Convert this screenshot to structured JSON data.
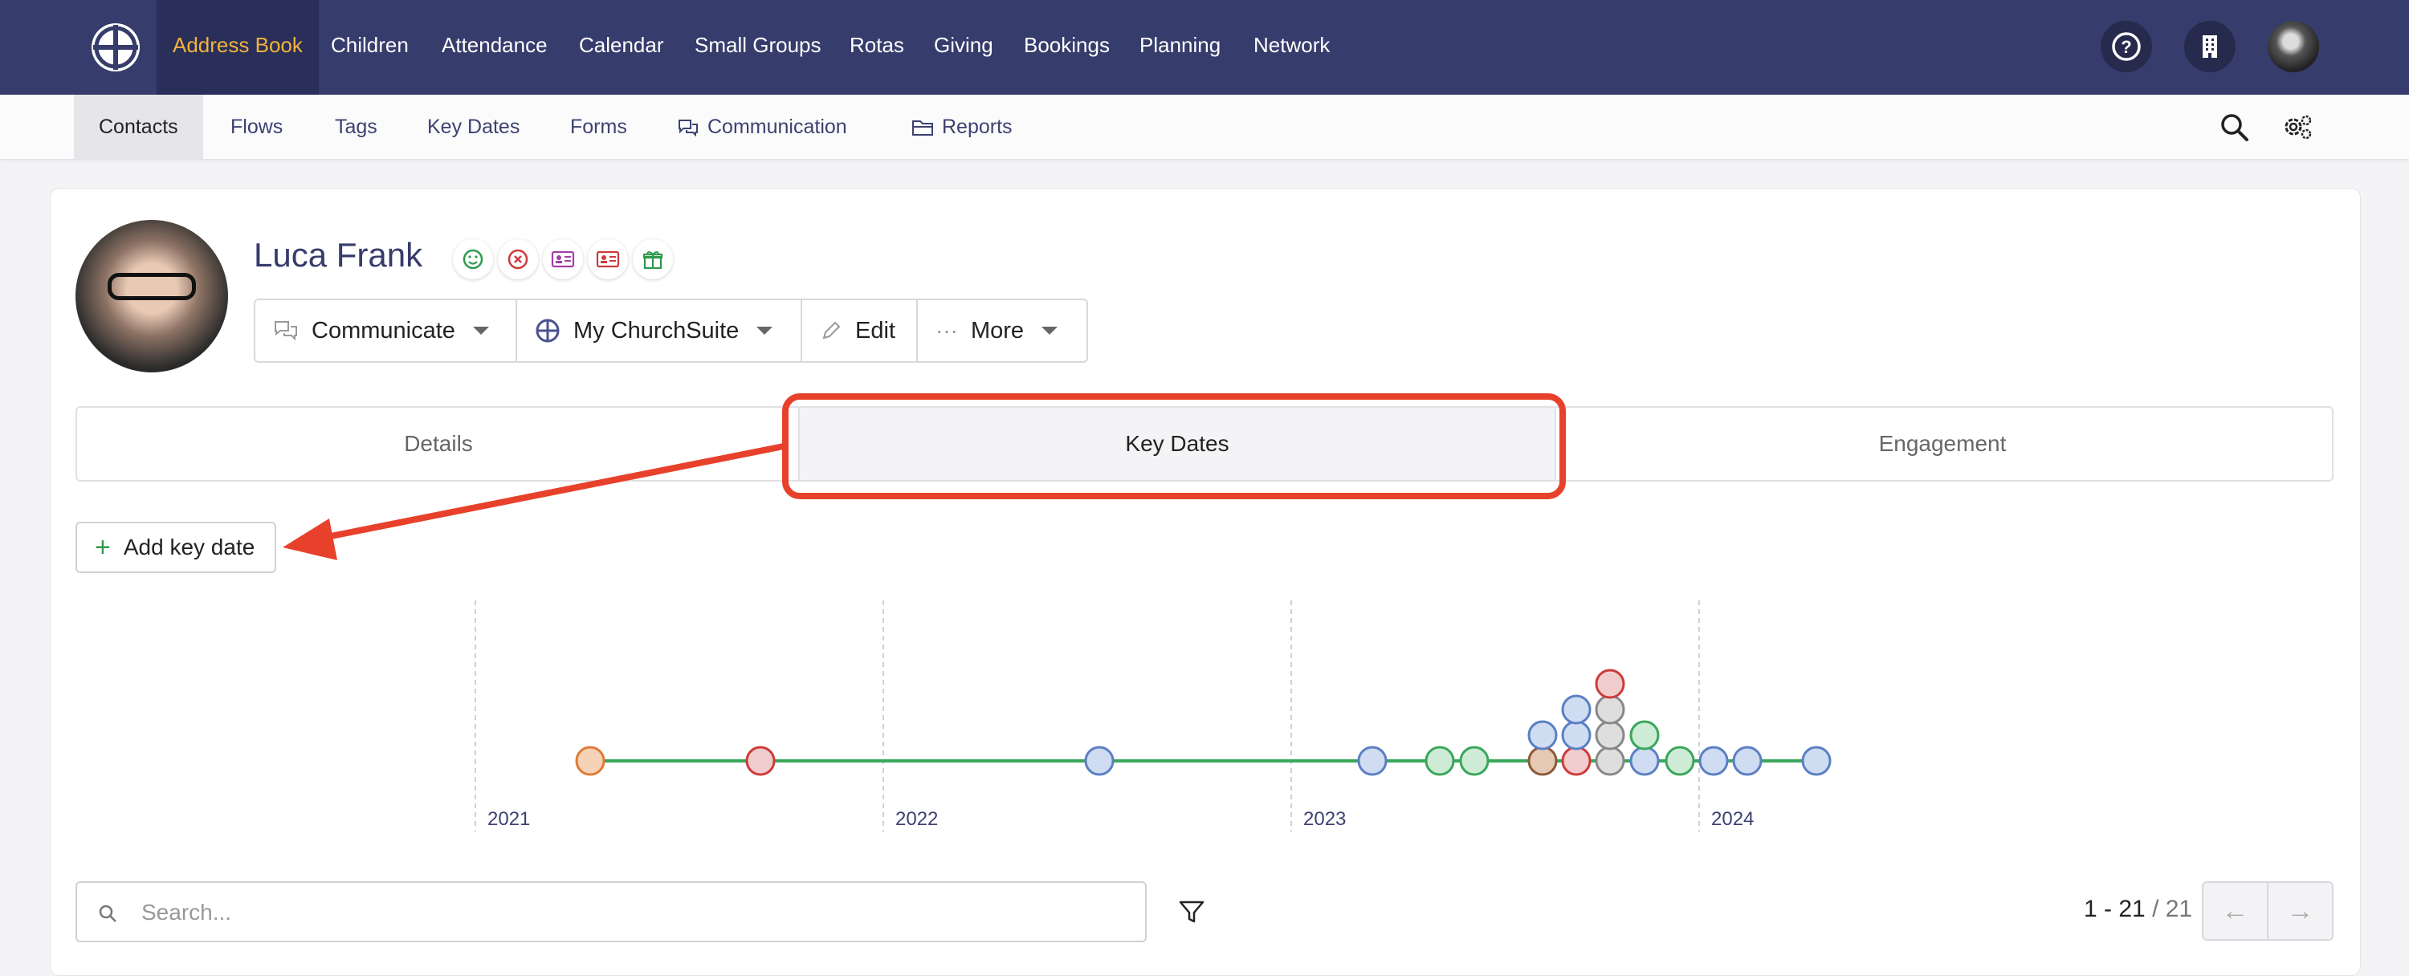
{
  "topnav": {
    "items": [
      {
        "label": "Address Book"
      },
      {
        "label": "Children"
      },
      {
        "label": "Attendance"
      },
      {
        "label": "Calendar"
      },
      {
        "label": "Small Groups"
      },
      {
        "label": "Rotas"
      },
      {
        "label": "Giving"
      },
      {
        "label": "Bookings"
      },
      {
        "label": "Planning"
      },
      {
        "label": "Network"
      }
    ],
    "active": "Address Book",
    "icons": [
      "help-icon",
      "building-icon",
      "user-avatar"
    ]
  },
  "subnav": {
    "items": [
      {
        "label": "Contacts"
      },
      {
        "label": "Flows"
      },
      {
        "label": "Tags"
      },
      {
        "label": "Key Dates"
      },
      {
        "label": "Forms"
      },
      {
        "label": "Communication"
      },
      {
        "label": "Reports"
      }
    ],
    "active": "Contacts",
    "icons": [
      "search-icon",
      "settings-icon"
    ]
  },
  "contact": {
    "name": "Luca Frank",
    "badges": [
      "smile-icon",
      "cross-circle-icon",
      "id-card-icon",
      "id-card-red-icon",
      "gift-icon"
    ]
  },
  "actions": {
    "communicate": "Communicate",
    "my_churchsuite": "My ChurchSuite",
    "edit": "Edit",
    "more": "More"
  },
  "tabs": {
    "details": "Details",
    "key_dates": "Key Dates",
    "engagement": "Engagement",
    "active": "Key Dates"
  },
  "add_key_date": "Add key date",
  "chart_data": {
    "type": "scatter",
    "x_ticks": [
      "2021",
      "2022",
      "2023",
      "2024"
    ],
    "series_colors": {
      "blue": "#5b7fc4",
      "green": "#3aa65b",
      "red": "#cc3b3b",
      "orange": "#e07a35",
      "grey": "#888888",
      "brown": "#8a5a3a"
    }
  },
  "search": {
    "placeholder": "Search...",
    "value": ""
  },
  "pagination": {
    "range": "1 - 21",
    "total": "/ 21"
  }
}
